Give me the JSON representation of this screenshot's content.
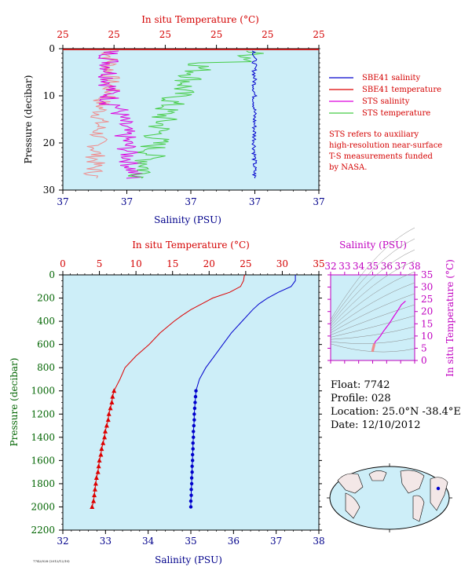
{
  "top": {
    "temp_axis_label": "In situ Temperature (°C)",
    "temp_ticks": [
      "25",
      "25",
      "25",
      "25",
      "25",
      "25"
    ],
    "pressure_axis_label": "Pressure (decibar)",
    "pressure_ticks": [
      "0",
      "10",
      "20",
      "30"
    ],
    "sal_axis_label": "Salinity (PSU)",
    "sal_ticks": [
      "37",
      "37",
      "37",
      "37",
      "37"
    ],
    "legend": [
      {
        "label": "SBE41 salinity",
        "color": "#0000cc"
      },
      {
        "label": "SBE41 temperature",
        "color": "#dd0000"
      },
      {
        "label": "STS salinity",
        "color": "#dd00dd"
      },
      {
        "label": "STS temperature",
        "color": "#44cc44"
      }
    ],
    "note": [
      "STS refers to auxiliary",
      "high-resolution near-surface",
      "T-S measurements funded",
      "by NASA."
    ]
  },
  "main": {
    "temp_axis_label": "In situ Temperature (°C)",
    "temp_ticks": [
      "0",
      "5",
      "10",
      "15",
      "20",
      "25",
      "30",
      "35"
    ],
    "pressure_axis_label": "Pressure (decibar)",
    "pressure_ticks": [
      "0",
      "200",
      "400",
      "600",
      "800",
      "1000",
      "1200",
      "1400",
      "1600",
      "1800",
      "2000",
      "2200"
    ],
    "sal_axis_label": "Salinity (PSU)",
    "sal_ticks": [
      "32",
      "33",
      "34",
      "35",
      "36",
      "37",
      "38"
    ]
  },
  "ts": {
    "sal_axis_label": "Salinity (PSU)",
    "sal_ticks": [
      "32",
      "33",
      "34",
      "35",
      "36",
      "37",
      "38"
    ],
    "temp_axis_label": "In situ Temperature (°C)",
    "temp_ticks": [
      "0",
      "5",
      "10",
      "15",
      "20",
      "25",
      "30",
      "35"
    ]
  },
  "info": {
    "float": "Float:  7742",
    "profile": "Profile:  028",
    "location": "Location:  25.0°N  -38.4°E",
    "date": "Date:  12/10/2012"
  },
  "footer": "7742/028 (2012/12/10)",
  "colors": {
    "plot_bg": "#cdeef8",
    "temperature": "#dd0000",
    "salinity": "#0000cc",
    "sts_salinity": "#dd00dd",
    "sts_temperature": "#44cc44",
    "sbe_temp_top": "#f08a8a"
  },
  "chart_data": [
    {
      "type": "line",
      "title": "",
      "xlabel": "Salinity (PSU)",
      "x2label": "In situ Temperature (°C)",
      "ylabel": "Pressure (decibar)",
      "ylim": [
        30,
        0
      ],
      "series": [
        {
          "name": "SBE41 salinity",
          "color": "#0000cc",
          "pressure": [
            0,
            5,
            8,
            10,
            12,
            14,
            16,
            18,
            20,
            22,
            24,
            26,
            27
          ],
          "values": [
            37.0,
            37.0,
            37.0,
            37.0,
            37.0,
            37.0,
            37.0,
            37.0,
            37.0,
            37.0,
            37.0,
            37.0,
            37.0
          ]
        },
        {
          "name": "SBE41 temperature",
          "color": "#dd0000",
          "pressure": [
            1,
            2,
            4,
            6,
            8,
            10,
            12,
            14,
            16,
            18,
            20,
            22,
            24,
            26,
            27
          ],
          "values": [
            25,
            25,
            25,
            25,
            25,
            25,
            25,
            25,
            25,
            25,
            25,
            25,
            25,
            25,
            25
          ]
        },
        {
          "name": "STS salinity",
          "color": "#dd00dd",
          "pressure": [
            0.5,
            2,
            4,
            6,
            8,
            10,
            12,
            14,
            16,
            18,
            20,
            22,
            24,
            26,
            27
          ],
          "values": [
            37,
            37,
            37,
            37,
            37,
            37,
            37,
            37,
            37,
            37,
            37,
            37,
            37,
            37,
            37
          ]
        },
        {
          "name": "STS temperature",
          "color": "#44cc44",
          "pressure": [
            0.5,
            2,
            4,
            6,
            8,
            10,
            12,
            14,
            16,
            18,
            20,
            22,
            24,
            26,
            27
          ],
          "values": [
            25,
            25,
            25,
            25,
            25,
            25,
            25,
            25,
            25,
            25,
            25,
            25,
            25,
            25,
            25
          ]
        }
      ]
    },
    {
      "type": "line",
      "title": "",
      "xlabel": "Salinity (PSU)",
      "x2label": "In situ Temperature (°C)",
      "ylabel": "Pressure (decibar)",
      "xlim_salinity": [
        32,
        38
      ],
      "xlim_temperature": [
        0,
        35
      ],
      "ylim": [
        2200,
        0
      ],
      "series": [
        {
          "name": "Temperature",
          "color": "#dd0000",
          "pressure": [
            0,
            10,
            50,
            100,
            150,
            200,
            250,
            300,
            350,
            400,
            500,
            600,
            700,
            800,
            900,
            1000,
            1050,
            1100,
            1150,
            1200,
            1250,
            1300,
            1350,
            1400,
            1450,
            1500,
            1550,
            1600,
            1650,
            1700,
            1750,
            1800,
            1850,
            1900,
            1950,
            2000
          ],
          "values": [
            24.9,
            24.8,
            24.7,
            24.3,
            22.8,
            20.5,
            19.0,
            17.5,
            16.3,
            15.2,
            13.3,
            11.8,
            10.0,
            8.5,
            7.8,
            7.0,
            6.8,
            6.7,
            6.5,
            6.3,
            6.2,
            6.0,
            5.8,
            5.7,
            5.5,
            5.3,
            5.2,
            5.0,
            4.9,
            4.8,
            4.6,
            4.5,
            4.4,
            4.3,
            4.2,
            4.0
          ]
        },
        {
          "name": "Salinity",
          "color": "#0000cc",
          "pressure": [
            0,
            50,
            100,
            150,
            200,
            250,
            300,
            400,
            500,
            600,
            700,
            800,
            900,
            1000,
            1050,
            1100,
            1150,
            1200,
            1250,
            1300,
            1350,
            1400,
            1450,
            1500,
            1550,
            1600,
            1650,
            1700,
            1750,
            1800,
            1850,
            1900,
            1950,
            2000
          ],
          "values": [
            37.45,
            37.45,
            37.35,
            37.05,
            36.8,
            36.6,
            36.45,
            36.2,
            35.95,
            35.75,
            35.55,
            35.35,
            35.2,
            35.12,
            35.11,
            35.1,
            35.09,
            35.08,
            35.08,
            35.07,
            35.06,
            35.06,
            35.05,
            35.05,
            35.04,
            35.04,
            35.03,
            35.03,
            35.02,
            35.02,
            35.01,
            35.01,
            35.0,
            35.0
          ]
        }
      ]
    },
    {
      "type": "line",
      "title": "",
      "xlabel": "Salinity (PSU)",
      "ylabel": "In situ Temperature (°C)",
      "xlim": [
        32,
        38
      ],
      "ylim": [
        0,
        35
      ],
      "series": [
        {
          "name": "T-S",
          "color": "#dd00dd",
          "salinity": [
            35.0,
            35.02,
            35.05,
            35.1,
            35.2,
            35.35,
            35.55,
            35.75,
            35.95,
            36.2,
            36.45,
            36.8,
            37.05,
            37.35
          ],
          "temperature": [
            4.0,
            4.5,
            5.3,
            6.5,
            7.8,
            8.5,
            10.0,
            11.8,
            13.3,
            15.2,
            17.5,
            20.5,
            22.8,
            24.3
          ]
        }
      ]
    }
  ]
}
